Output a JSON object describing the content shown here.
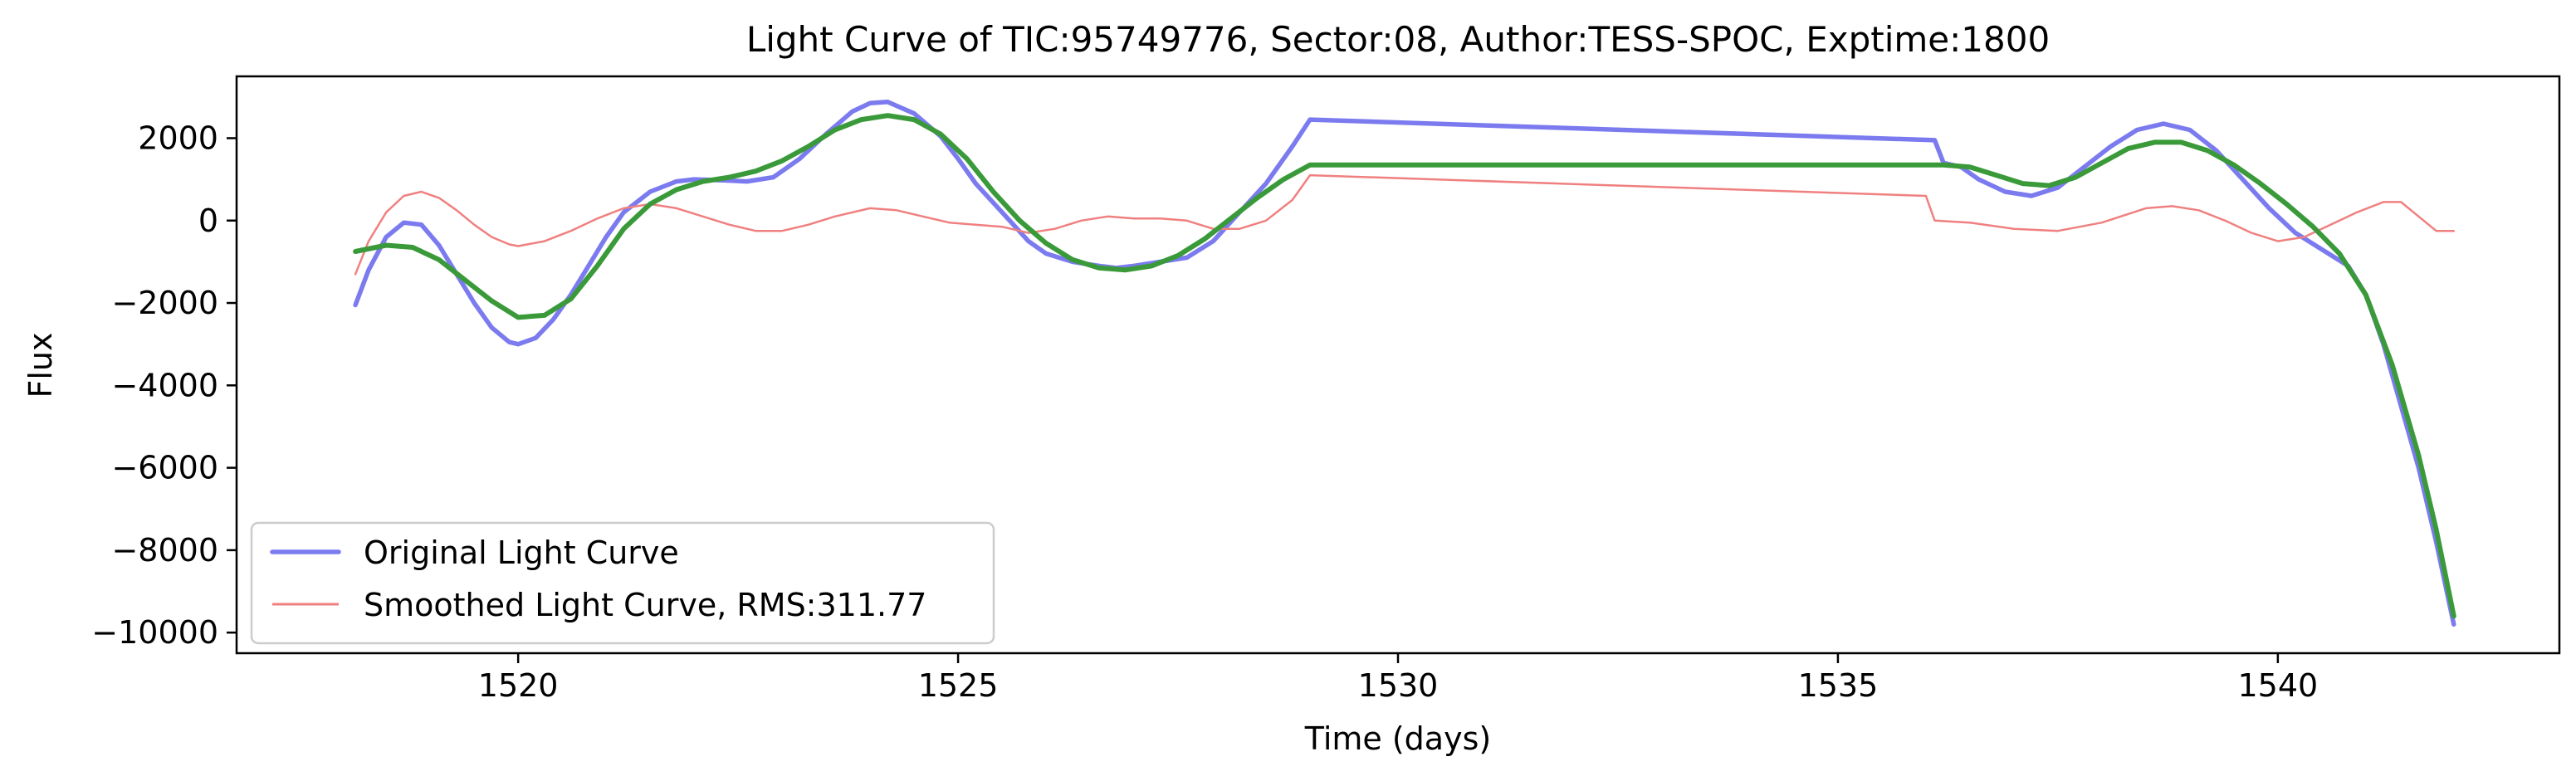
{
  "chart_data": {
    "type": "line",
    "title": "Light Curve of TIC:95749776, Sector:08, Author:TESS-SPOC, Exptime:1800",
    "xlabel": "Time (days)",
    "ylabel": "Flux",
    "xlim": [
      1516.8,
      1543.2
    ],
    "ylim": [
      -10500,
      3500
    ],
    "x_ticks": [
      1520,
      1525,
      1530,
      1535,
      1540
    ],
    "x_tick_labels": [
      "1520",
      "1525",
      "1530",
      "1535",
      "1540"
    ],
    "y_ticks": [
      2000,
      0,
      -2000,
      -4000,
      -6000,
      -8000,
      -10000
    ],
    "y_tick_labels": [
      "2000",
      "0",
      "−2000",
      "−4000",
      "−6000",
      "−8000",
      "−10000"
    ],
    "grid": false,
    "legend_position": "lower-left",
    "series": [
      {
        "name": "Original Light Curve",
        "color": "#7b7bef",
        "points": [
          [
            1518.15,
            -2050
          ],
          [
            1518.3,
            -1200
          ],
          [
            1518.5,
            -400
          ],
          [
            1518.7,
            -50
          ],
          [
            1518.9,
            -100
          ],
          [
            1519.1,
            -600
          ],
          [
            1519.3,
            -1300
          ],
          [
            1519.5,
            -2000
          ],
          [
            1519.7,
            -2600
          ],
          [
            1519.9,
            -2950
          ],
          [
            1520.0,
            -3000
          ],
          [
            1520.2,
            -2850
          ],
          [
            1520.4,
            -2400
          ],
          [
            1520.6,
            -1800
          ],
          [
            1520.8,
            -1100
          ],
          [
            1521.0,
            -400
          ],
          [
            1521.2,
            200
          ],
          [
            1521.5,
            700
          ],
          [
            1521.8,
            950
          ],
          [
            1522.0,
            1000
          ],
          [
            1522.3,
            980
          ],
          [
            1522.6,
            950
          ],
          [
            1522.9,
            1050
          ],
          [
            1523.2,
            1500
          ],
          [
            1523.5,
            2100
          ],
          [
            1523.8,
            2650
          ],
          [
            1524.0,
            2850
          ],
          [
            1524.2,
            2880
          ],
          [
            1524.5,
            2600
          ],
          [
            1524.8,
            2050
          ],
          [
            1525.0,
            1500
          ],
          [
            1525.2,
            900
          ],
          [
            1525.5,
            200
          ],
          [
            1525.8,
            -500
          ],
          [
            1526.0,
            -800
          ],
          [
            1526.3,
            -1000
          ],
          [
            1526.6,
            -1100
          ],
          [
            1526.8,
            -1150
          ],
          [
            1527.0,
            -1100
          ],
          [
            1527.3,
            -1000
          ],
          [
            1527.6,
            -900
          ],
          [
            1527.9,
            -500
          ],
          [
            1528.2,
            200
          ],
          [
            1528.5,
            900
          ],
          [
            1528.8,
            1800
          ],
          [
            1529.0,
            2450
          ],
          [
            1536.1,
            1950
          ],
          [
            1536.2,
            1400
          ],
          [
            1536.4,
            1300
          ],
          [
            1536.6,
            1000
          ],
          [
            1536.9,
            700
          ],
          [
            1537.2,
            600
          ],
          [
            1537.5,
            800
          ],
          [
            1537.8,
            1300
          ],
          [
            1538.1,
            1800
          ],
          [
            1538.4,
            2200
          ],
          [
            1538.7,
            2350
          ],
          [
            1539.0,
            2200
          ],
          [
            1539.3,
            1700
          ],
          [
            1539.6,
            1000
          ],
          [
            1539.9,
            300
          ],
          [
            1540.2,
            -300
          ],
          [
            1540.5,
            -700
          ],
          [
            1540.8,
            -1100
          ],
          [
            1541.0,
            -1800
          ],
          [
            1541.2,
            -3000
          ],
          [
            1541.4,
            -4500
          ],
          [
            1541.6,
            -6000
          ],
          [
            1541.8,
            -7800
          ],
          [
            1542.0,
            -9800
          ]
        ]
      },
      {
        "name": "Smoothed Light Curve, RMS:311.77",
        "color": "#f08080",
        "points": [
          [
            1518.15,
            -1300
          ],
          [
            1518.3,
            -500
          ],
          [
            1518.5,
            200
          ],
          [
            1518.7,
            600
          ],
          [
            1518.9,
            700
          ],
          [
            1519.1,
            550
          ],
          [
            1519.3,
            250
          ],
          [
            1519.5,
            -100
          ],
          [
            1519.7,
            -400
          ],
          [
            1519.9,
            -580
          ],
          [
            1520.0,
            -620
          ],
          [
            1520.3,
            -500
          ],
          [
            1520.6,
            -250
          ],
          [
            1520.9,
            50
          ],
          [
            1521.2,
            300
          ],
          [
            1521.5,
            400
          ],
          [
            1521.8,
            300
          ],
          [
            1522.1,
            100
          ],
          [
            1522.4,
            -100
          ],
          [
            1522.7,
            -250
          ],
          [
            1523.0,
            -250
          ],
          [
            1523.3,
            -100
          ],
          [
            1523.6,
            100
          ],
          [
            1524.0,
            300
          ],
          [
            1524.3,
            250
          ],
          [
            1524.6,
            100
          ],
          [
            1524.9,
            -50
          ],
          [
            1525.2,
            -100
          ],
          [
            1525.5,
            -150
          ],
          [
            1525.8,
            -300
          ],
          [
            1526.1,
            -200
          ],
          [
            1526.4,
            0
          ],
          [
            1526.7,
            100
          ],
          [
            1527.0,
            50
          ],
          [
            1527.3,
            50
          ],
          [
            1527.6,
            0
          ],
          [
            1527.9,
            -200
          ],
          [
            1528.2,
            -200
          ],
          [
            1528.5,
            0
          ],
          [
            1528.8,
            500
          ],
          [
            1529.0,
            1100
          ],
          [
            1536.0,
            600
          ],
          [
            1536.1,
            0
          ],
          [
            1536.5,
            -50
          ],
          [
            1537.0,
            -200
          ],
          [
            1537.5,
            -250
          ],
          [
            1538.0,
            -50
          ],
          [
            1538.5,
            300
          ],
          [
            1538.8,
            350
          ],
          [
            1539.1,
            250
          ],
          [
            1539.4,
            0
          ],
          [
            1539.7,
            -300
          ],
          [
            1540.0,
            -500
          ],
          [
            1540.3,
            -400
          ],
          [
            1540.6,
            -100
          ],
          [
            1540.9,
            200
          ],
          [
            1541.2,
            450
          ],
          [
            1541.4,
            450
          ],
          [
            1541.6,
            100
          ],
          [
            1541.8,
            -250
          ],
          [
            1542.0,
            -250
          ]
        ]
      },
      {
        "name": "",
        "color": "#3a9a3a",
        "points": [
          [
            1518.15,
            -750
          ],
          [
            1518.5,
            -600
          ],
          [
            1518.8,
            -650
          ],
          [
            1519.1,
            -950
          ],
          [
            1519.4,
            -1450
          ],
          [
            1519.7,
            -1950
          ],
          [
            1520.0,
            -2350
          ],
          [
            1520.3,
            -2300
          ],
          [
            1520.6,
            -1900
          ],
          [
            1520.9,
            -1100
          ],
          [
            1521.2,
            -200
          ],
          [
            1521.5,
            400
          ],
          [
            1521.8,
            750
          ],
          [
            1522.1,
            950
          ],
          [
            1522.4,
            1050
          ],
          [
            1522.7,
            1200
          ],
          [
            1523.0,
            1450
          ],
          [
            1523.3,
            1800
          ],
          [
            1523.6,
            2200
          ],
          [
            1523.9,
            2450
          ],
          [
            1524.2,
            2550
          ],
          [
            1524.5,
            2450
          ],
          [
            1524.8,
            2100
          ],
          [
            1525.1,
            1500
          ],
          [
            1525.4,
            700
          ],
          [
            1525.7,
            0
          ],
          [
            1526.0,
            -550
          ],
          [
            1526.3,
            -950
          ],
          [
            1526.6,
            -1150
          ],
          [
            1526.9,
            -1200
          ],
          [
            1527.2,
            -1100
          ],
          [
            1527.5,
            -850
          ],
          [
            1527.8,
            -450
          ],
          [
            1528.1,
            50
          ],
          [
            1528.4,
            550
          ],
          [
            1528.7,
            1000
          ],
          [
            1529.0,
            1350
          ],
          [
            1536.2,
            1350
          ],
          [
            1536.5,
            1300
          ],
          [
            1536.8,
            1100
          ],
          [
            1537.1,
            900
          ],
          [
            1537.4,
            850
          ],
          [
            1537.7,
            1050
          ],
          [
            1538.0,
            1400
          ],
          [
            1538.3,
            1750
          ],
          [
            1538.6,
            1900
          ],
          [
            1538.9,
            1900
          ],
          [
            1539.2,
            1700
          ],
          [
            1539.5,
            1350
          ],
          [
            1539.8,
            900
          ],
          [
            1540.1,
            400
          ],
          [
            1540.4,
            -150
          ],
          [
            1540.7,
            -800
          ],
          [
            1541.0,
            -1800
          ],
          [
            1541.3,
            -3500
          ],
          [
            1541.6,
            -5700
          ],
          [
            1541.8,
            -7500
          ],
          [
            1542.0,
            -9600
          ]
        ]
      }
    ]
  }
}
